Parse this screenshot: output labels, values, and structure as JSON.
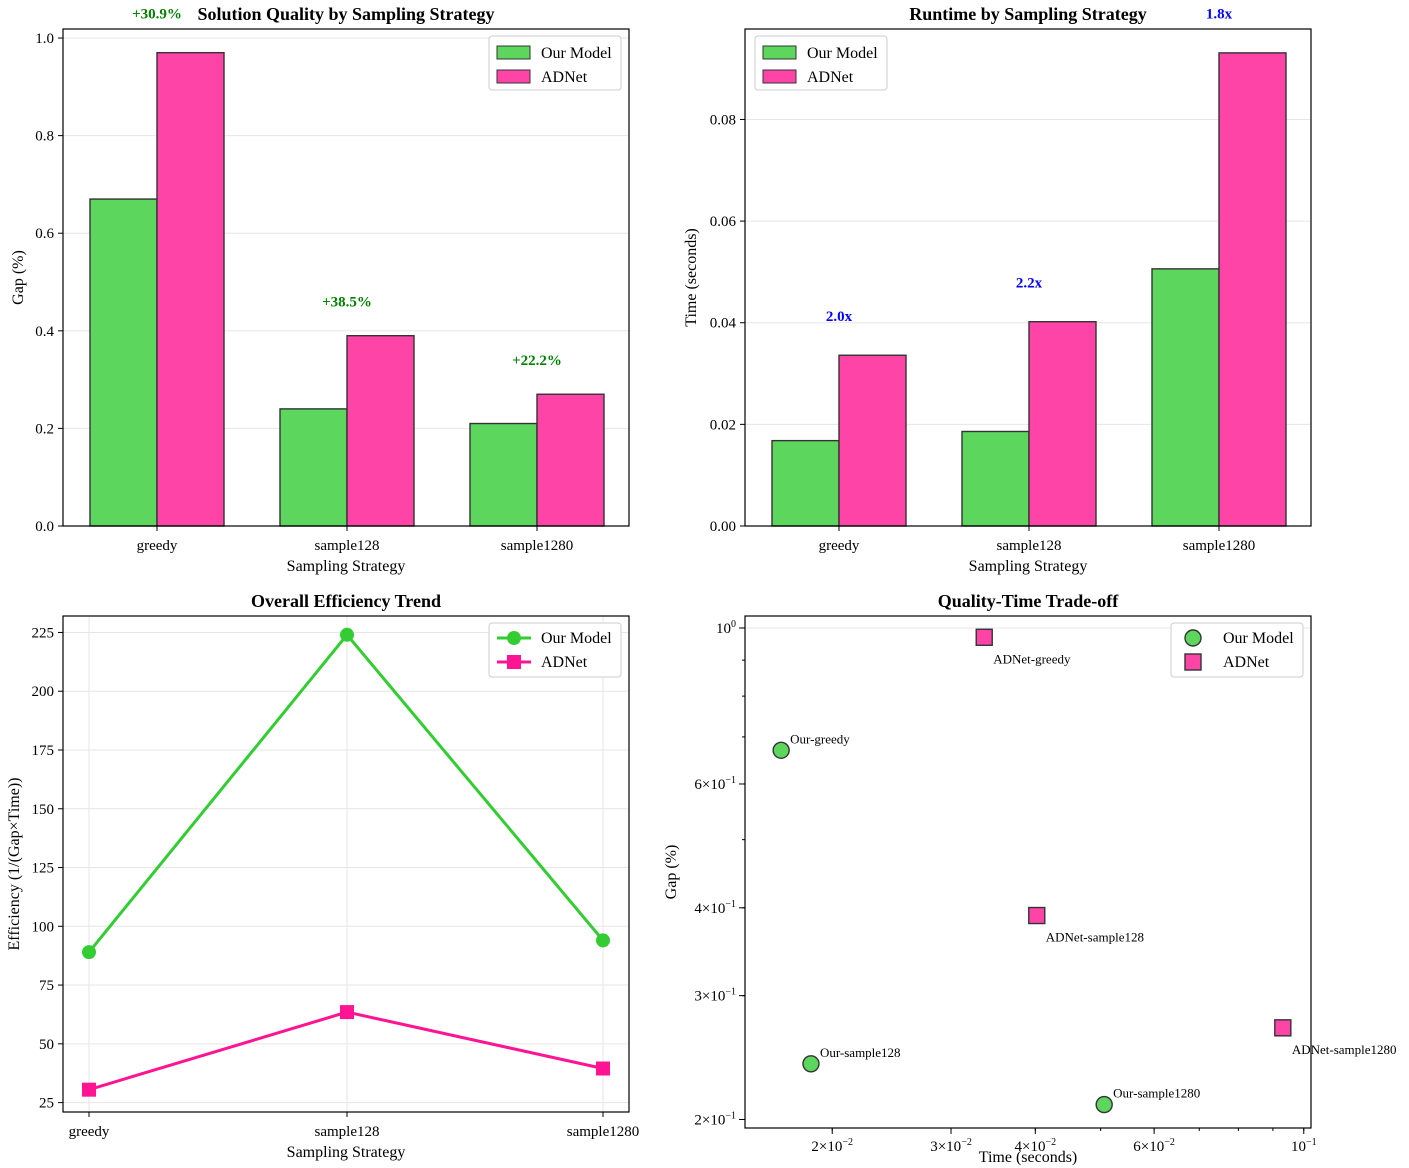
{
  "colors": {
    "our_model": "#5cd65c",
    "adnet": "#ff44a8",
    "line_our": "#33cc33",
    "line_adnet": "#ff1493",
    "improve": "#008000",
    "speed": "#0000ff",
    "grid": "#e6e6e6",
    "edge": "#333333"
  },
  "chart_data": [
    {
      "type": "bar",
      "title": "Solution Quality by Sampling Strategy",
      "xlabel": "Sampling Strategy",
      "ylabel": "Gap (%)",
      "categories": [
        "greedy",
        "sample128",
        "sample1280"
      ],
      "series": [
        {
          "name": "Our Model",
          "values": [
            0.67,
            0.24,
            0.21
          ]
        },
        {
          "name": "ADNet",
          "values": [
            0.97,
            0.39,
            0.27
          ]
        }
      ],
      "annotations": [
        "+30.9%",
        "+38.5%",
        "+22.2%"
      ],
      "annotation_y": [
        1.04,
        0.45,
        0.33
      ],
      "ylim": [
        0,
        1.0185
      ],
      "yticks": [
        0.0,
        0.2,
        0.4,
        0.6,
        0.8,
        1.0
      ],
      "ytick_labels": [
        "0.0",
        "0.2",
        "0.4",
        "0.6",
        "0.8",
        "1.0"
      ],
      "legend": "top-right",
      "grid": true
    },
    {
      "type": "bar",
      "title": "Runtime by Sampling Strategy",
      "xlabel": "Sampling Strategy",
      "ylabel": "Time (seconds)",
      "categories": [
        "greedy",
        "sample128",
        "sample1280"
      ],
      "series": [
        {
          "name": "Our Model",
          "values": [
            0.0168,
            0.0186,
            0.0506
          ]
        },
        {
          "name": "ADNet",
          "values": [
            0.0336,
            0.0402,
            0.0931
          ]
        }
      ],
      "annotations": [
        "2.0x",
        "2.2x",
        "1.8x"
      ],
      "annotation_y": [
        0.0403,
        0.0469,
        0.0999
      ],
      "ylim": [
        0,
        0.0978
      ],
      "yticks": [
        0.0,
        0.02,
        0.04,
        0.06,
        0.08
      ],
      "ytick_labels": [
        "0.00",
        "0.02",
        "0.04",
        "0.06",
        "0.08"
      ],
      "legend": "top-left",
      "grid": true
    },
    {
      "type": "line",
      "title": "Overall Efficiency Trend",
      "xlabel": "Sampling Strategy",
      "ylabel": "Efficiency (1/(Gap×Time))",
      "categories": [
        "greedy",
        "sample128",
        "sample1280"
      ],
      "series": [
        {
          "name": "Our Model",
          "values": [
            89,
            224,
            94
          ],
          "marker": "circle"
        },
        {
          "name": "ADNet",
          "values": [
            30.5,
            63.5,
            39.5
          ],
          "marker": "square"
        }
      ],
      "ylim": [
        21,
        232
      ],
      "yticks": [
        25,
        50,
        75,
        100,
        125,
        150,
        175,
        200,
        225
      ],
      "ytick_labels": [
        "25",
        "50",
        "75",
        "100",
        "125",
        "150",
        "175",
        "200",
        "225"
      ],
      "legend": "top-right",
      "grid": true
    },
    {
      "type": "scatter",
      "title": "Quality-Time Trade-off",
      "xlabel": "Time (seconds)",
      "ylabel": "Gap (%)",
      "xscale": "log",
      "yscale": "log",
      "xlim": [
        0.01485,
        0.1025
      ],
      "ylim": [
        0.1945,
        1.04
      ],
      "series": [
        {
          "name": "Our Model",
          "marker": "circle",
          "points": [
            {
              "x": 0.0168,
              "y": 0.67,
              "label": "Our-greedy"
            },
            {
              "x": 0.0186,
              "y": 0.24,
              "label": "Our-sample128"
            },
            {
              "x": 0.0506,
              "y": 0.21,
              "label": "Our-sample1280"
            }
          ]
        },
        {
          "name": "ADNet",
          "marker": "square",
          "points": [
            {
              "x": 0.0336,
              "y": 0.97,
              "label": "ADNet-greedy"
            },
            {
              "x": 0.0402,
              "y": 0.39,
              "label": "ADNet-sample128"
            },
            {
              "x": 0.0931,
              "y": 0.27,
              "label": "ADNet-sample1280"
            }
          ]
        }
      ],
      "xticks": [
        0.02,
        0.03,
        0.04,
        0.06,
        0.1
      ],
      "xtick_labels": [
        [
          "2×10",
          "−2"
        ],
        [
          "3×10",
          "−2"
        ],
        [
          "4×10",
          "−2"
        ],
        [
          "6×10",
          "−2"
        ],
        [
          "10",
          "−1"
        ]
      ],
      "yticks": [
        0.2,
        0.3,
        0.4,
        0.6,
        1.0
      ],
      "ytick_labels": [
        [
          "2×10",
          "−1"
        ],
        [
          "3×10",
          "−1"
        ],
        [
          "4×10",
          "−1"
        ],
        [
          "6×10",
          "−1"
        ],
        [
          "10",
          "0"
        ]
      ],
      "legend": "top-right",
      "grid": true
    }
  ]
}
